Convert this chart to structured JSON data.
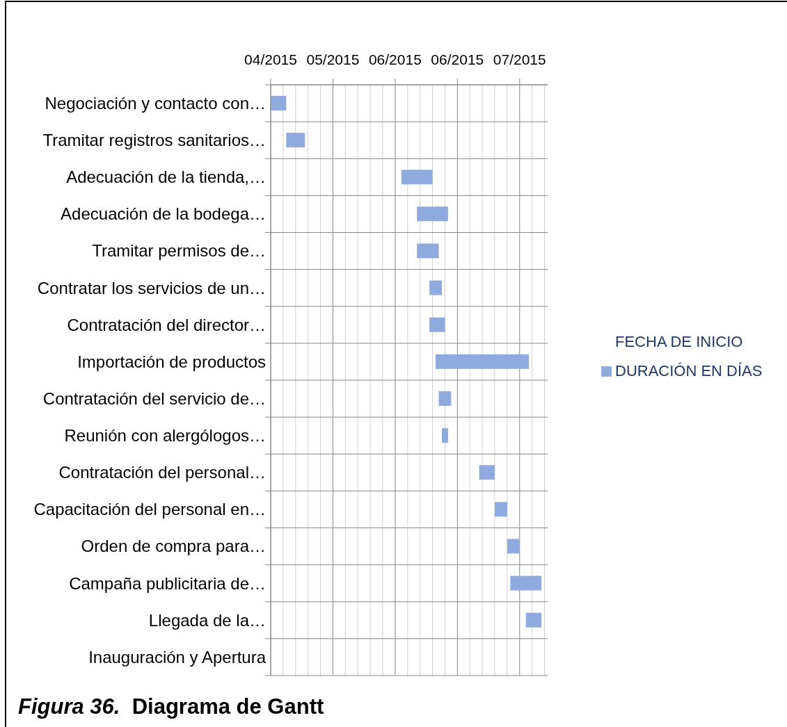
{
  "chart_data": {
    "type": "bar",
    "orientation": "horizontal",
    "title": "Figura 36.  Diagrama de Gantt",
    "categories": [
      "Negociación y contacto con…",
      "Tramitar registros sanitarios…",
      "Adecuación de la tienda,…",
      "Adecuación de la bodega…",
      "Tramitar permisos de…",
      "Contratar los servicios de un…",
      "Contratación del director…",
      "Importación de productos",
      "Contratación del servicio de…",
      "Reunión con alergólogos…",
      "Contratación del personal…",
      "Capacitación del personal en…",
      "Orden de compra para…",
      "Campaña publicitaria de…",
      "Llegada de la…",
      "Inauguración y Apertura"
    ],
    "series": [
      {
        "name": "FECHA DE INICIO",
        "values": [
          null,
          null,
          null,
          null,
          null,
          null,
          null,
          null,
          null,
          null,
          null,
          null,
          null,
          null,
          null,
          null
        ]
      },
      {
        "name": "DURACIÓN EN DÍAS",
        "color": "#8faadc",
        "base": [
          16552,
          16557,
          16594,
          16599,
          16599,
          16603,
          16603,
          16605,
          16606,
          16607,
          16619,
          16624,
          16628,
          16629,
          16634,
          null
        ],
        "values": [
          5,
          6,
          10,
          10,
          7,
          4,
          5,
          30,
          4,
          2,
          5,
          4,
          4,
          10,
          5,
          null
        ]
      }
    ],
    "xlim": [
      "2015-04-27",
      "2015-07-25"
    ],
    "xticks": [
      {
        "value": "2015-04-27",
        "label": "04/2015"
      },
      {
        "value": "2015-05-01",
        "label": null
      },
      {
        "value": "2015-05-05",
        "label": null
      },
      {
        "value": "2015-05-09",
        "label": null
      },
      {
        "value": "2015-05-13",
        "label": null
      },
      {
        "value": "2015-05-17",
        "label": "05/2015"
      },
      {
        "value": "2015-05-21",
        "label": null
      },
      {
        "value": "2015-05-25",
        "label": null
      },
      {
        "value": "2015-05-29",
        "label": null
      },
      {
        "value": "2015-06-02",
        "label": null
      },
      {
        "value": "2015-06-06",
        "label": "06/2015"
      },
      {
        "value": "2015-06-10",
        "label": null
      },
      {
        "value": "2015-06-14",
        "label": null
      },
      {
        "value": "2015-06-18",
        "label": null
      },
      {
        "value": "2015-06-22",
        "label": null
      },
      {
        "value": "2015-06-26",
        "label": "06/2015"
      },
      {
        "value": "2015-06-30",
        "label": null
      },
      {
        "value": "2015-07-04",
        "label": null
      },
      {
        "value": "2015-07-08",
        "label": null
      },
      {
        "value": "2015-07-12",
        "label": null
      },
      {
        "value": "2015-07-16",
        "label": "07/2015"
      },
      {
        "value": "2015-07-20",
        "label": null
      },
      {
        "value": "2015-07-24",
        "label": null
      }
    ],
    "grid": true,
    "legend": "right"
  }
}
